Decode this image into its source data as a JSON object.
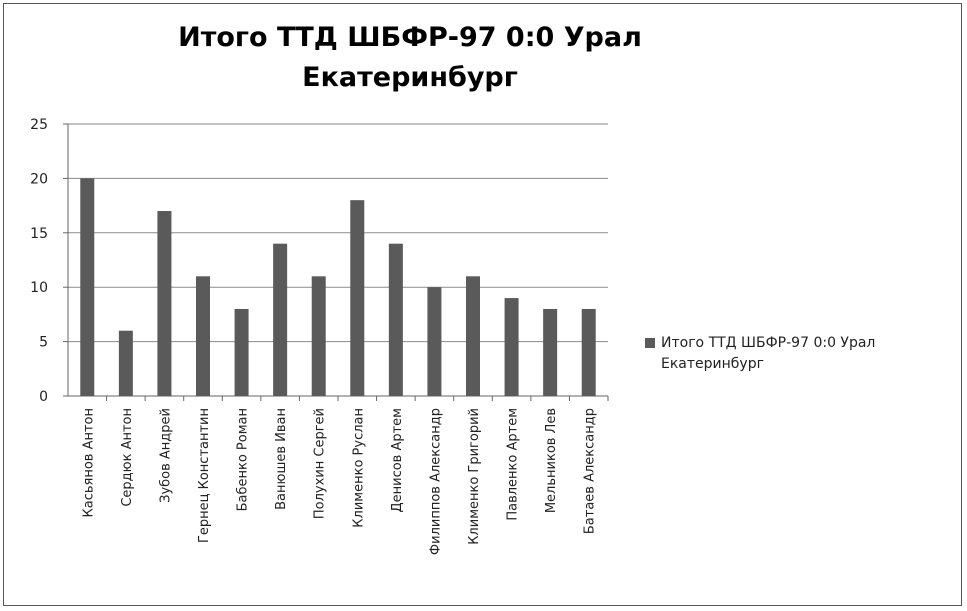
{
  "chart_data": {
    "type": "bar",
    "title": "Итого ТТД ШБФР-97  0:0  Урал Екатеринбург",
    "title_lines": [
      "Итого ТТД ШБФР-97  0:0  Урал",
      "Екатеринбург"
    ],
    "categories": [
      "Касьянов Антон",
      "Сердюк Антон",
      "Зубов Андрей",
      "Гернец Константин",
      "Бабенко Роман",
      "Ванюшев Иван",
      "Полухин Сергей",
      "Клименко Руслан",
      "Денисов Артем",
      "Филиппов Александр",
      "Клименко Григорий",
      "Павленко Артем",
      "Мельников Лев",
      "Батаев Александр"
    ],
    "series": [
      {
        "name": "Итого ТТД ШБФР-97  0:0  Урал Екатеринбург",
        "values": [
          20,
          6,
          17,
          11,
          8,
          14,
          11,
          18,
          14,
          10,
          11,
          9,
          8,
          8
        ],
        "color": "#5a5a5a"
      }
    ],
    "y_ticks": [
      "0",
      "5",
      "10",
      "15",
      "20",
      "25"
    ],
    "ylim": [
      0,
      25
    ],
    "grid": true,
    "legend_position": "right"
  }
}
